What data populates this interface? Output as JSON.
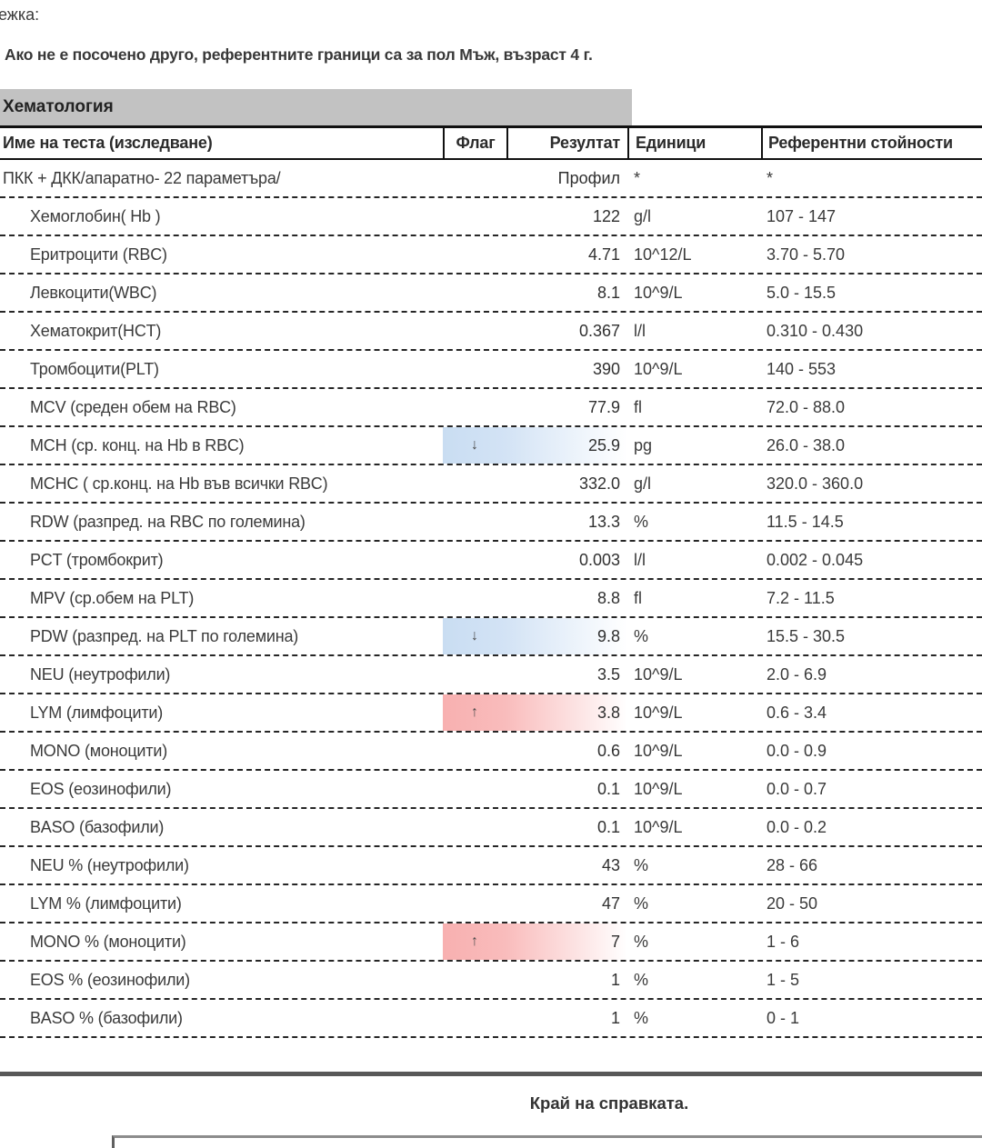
{
  "page": {
    "note_label": "ежка:",
    "reference_note": "Ако не е посочено друго, референтните граници са за пол Мъж, възраст 4 г.",
    "section_title": "Хематология",
    "footer_text": "Край на справката."
  },
  "colors": {
    "low_flag_blue": "#c9ddf2",
    "high_flag_red": "#f8b0b0",
    "section_bar_gray": "#c2c2c2",
    "divider_gray": "#585858"
  },
  "table": {
    "headers": {
      "name": "Име на теста (изследване)",
      "flag": "Флаг",
      "result": "Резултат",
      "units": "Единици",
      "reference": "Референтни стойности"
    },
    "rows": [
      {
        "name": "ПКК + ДКК/апаратно- 22 параметъра/",
        "indent": false,
        "flag_type": "none",
        "flag_symbol": "",
        "result": "Профил",
        "units": "*",
        "reference": "*"
      },
      {
        "name": "Хемоглобин( Hb )",
        "indent": true,
        "flag_type": "none",
        "flag_symbol": "",
        "result": "122",
        "units": "g/l",
        "reference": "107 - 147"
      },
      {
        "name": "Еритроцити (RBC)",
        "indent": true,
        "flag_type": "none",
        "flag_symbol": "",
        "result": "4.71",
        "units": "10^12/L",
        "reference": "3.70 - 5.70"
      },
      {
        "name": "Левкоцити(WBC)",
        "indent": true,
        "flag_type": "none",
        "flag_symbol": "",
        "result": "8.1",
        "units": "10^9/L",
        "reference": "5.0 - 15.5"
      },
      {
        "name": "Хематокрит(HCT)",
        "indent": true,
        "flag_type": "none",
        "flag_symbol": "",
        "result": "0.367",
        "units": "l/l",
        "reference": "0.310 - 0.430"
      },
      {
        "name": "Тромбоцити(PLT)",
        "indent": true,
        "flag_type": "none",
        "flag_symbol": "",
        "result": "390",
        "units": "10^9/L",
        "reference": "140 - 553"
      },
      {
        "name": "MCV (среден обем на RBC)",
        "indent": true,
        "flag_type": "none",
        "flag_symbol": "",
        "result": "77.9",
        "units": "fl",
        "reference": "72.0 - 88.0"
      },
      {
        "name": "MCH (ср. конц. на Hb в RBC)",
        "indent": true,
        "flag_type": "low",
        "flag_symbol": "↓",
        "result": "25.9",
        "units": "pg",
        "reference": "26.0 - 38.0"
      },
      {
        "name": "MCHC ( ср.конц. на Hb във всички RBC)",
        "indent": true,
        "flag_type": "none",
        "flag_symbol": "",
        "result": "332.0",
        "units": "g/l",
        "reference": "320.0 - 360.0"
      },
      {
        "name": "RDW (разпред. на RBC по големина)",
        "indent": true,
        "flag_type": "none",
        "flag_symbol": "",
        "result": "13.3",
        "units": "%",
        "reference": "11.5 - 14.5"
      },
      {
        "name": "PCT (тромбокрит)",
        "indent": true,
        "flag_type": "none",
        "flag_symbol": "",
        "result": "0.003",
        "units": "l/l",
        "reference": "0.002 - 0.045"
      },
      {
        "name": "MPV (ср.обем на PLT)",
        "indent": true,
        "flag_type": "none",
        "flag_symbol": "",
        "result": "8.8",
        "units": "fl",
        "reference": "7.2 - 11.5"
      },
      {
        "name": "PDW (разпред. на PLT по големина)",
        "indent": true,
        "flag_type": "low",
        "flag_symbol": "↓",
        "result": "9.8",
        "units": "%",
        "reference": "15.5 - 30.5"
      },
      {
        "name": "NEU (неутрофили)",
        "indent": true,
        "flag_type": "none",
        "flag_symbol": "",
        "result": "3.5",
        "units": "10^9/L",
        "reference": "2.0 - 6.9"
      },
      {
        "name": "LYM (лимфоцити)",
        "indent": true,
        "flag_type": "high",
        "flag_symbol": "↑",
        "result": "3.8",
        "units": "10^9/L",
        "reference": "0.6 - 3.4"
      },
      {
        "name": "MONO (моноцити)",
        "indent": true,
        "flag_type": "none",
        "flag_symbol": "",
        "result": "0.6",
        "units": "10^9/L",
        "reference": "0.0 - 0.9"
      },
      {
        "name": "EOS (еозинофили)",
        "indent": true,
        "flag_type": "none",
        "flag_symbol": "",
        "result": "0.1",
        "units": "10^9/L",
        "reference": "0.0 - 0.7"
      },
      {
        "name": "BASO (базофили)",
        "indent": true,
        "flag_type": "none",
        "flag_symbol": "",
        "result": "0.1",
        "units": "10^9/L",
        "reference": "0.0 - 0.2"
      },
      {
        "name": "NEU % (неутрофили)",
        "indent": true,
        "flag_type": "none",
        "flag_symbol": "",
        "result": "43",
        "units": "%",
        "reference": "28 - 66"
      },
      {
        "name": "LYM % (лимфоцити)",
        "indent": true,
        "flag_type": "none",
        "flag_symbol": "",
        "result": "47",
        "units": "%",
        "reference": "20 - 50"
      },
      {
        "name": "MONO % (моноцити)",
        "indent": true,
        "flag_type": "high",
        "flag_symbol": "↑",
        "result": "7",
        "units": "%",
        "reference": "1 - 6"
      },
      {
        "name": "EOS % (еозинофили)",
        "indent": true,
        "flag_type": "none",
        "flag_symbol": "",
        "result": "1",
        "units": "%",
        "reference": "1 - 5"
      },
      {
        "name": "BASO % (базофили)",
        "indent": true,
        "flag_type": "none",
        "flag_symbol": "",
        "result": "1",
        "units": "%",
        "reference": "0 - 1"
      }
    ]
  }
}
